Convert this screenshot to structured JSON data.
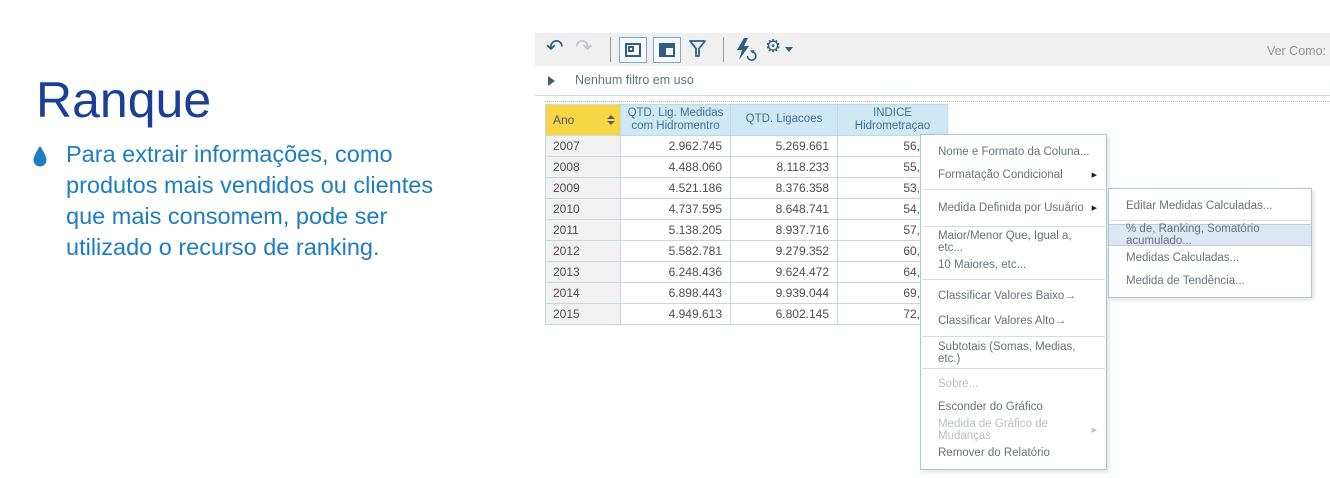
{
  "slide": {
    "title": "Ranque",
    "bullet_lines": [
      "Para extrair informações, como",
      "produtos mais vendidos ou clientes",
      "que mais consomem, pode ser",
      "utilizado o recurso de ranking."
    ]
  },
  "toolbar": {
    "icons": [
      "undo-arrow",
      "redo-arrow",
      "layout-panel",
      "layout-table",
      "filter-funnel",
      "refresh-bolt",
      "settings-gear"
    ],
    "undo_glyph": "↶",
    "redo_glyph": "↷",
    "gear_glyph": "⚙",
    "view_as_label": "Ver Como:"
  },
  "filter_bar": {
    "text": "Nenhum filtro em uso"
  },
  "table": {
    "columns": [
      {
        "id": "ano",
        "label": "Ano",
        "sorted": true
      },
      {
        "id": "medidas",
        "label_line1": "QTD. Lig. Medidas",
        "label_line2": "com Hidromentro"
      },
      {
        "id": "ligacoes",
        "label": "QTD. Ligacoes"
      },
      {
        "id": "indice",
        "label_line1": "INDICE",
        "label_line2": "Hidrometraçao"
      }
    ],
    "rows": [
      [
        "2007",
        "2.962.745",
        "5.269.661",
        "56,"
      ],
      [
        "2008",
        "4.488.060",
        "8.118.233",
        "55,"
      ],
      [
        "2009",
        "4.521.186",
        "8.376.358",
        "53,"
      ],
      [
        "2010",
        "4.737.595",
        "8.648.741",
        "54,"
      ],
      [
        "2011",
        "5.138.205",
        "8.937.716",
        "57,"
      ],
      [
        "2012",
        "5.582.781",
        "9.279.352",
        "60,"
      ],
      [
        "2013",
        "6.248.436",
        "9.624.472",
        "64,"
      ],
      [
        "2014",
        "6.898.443",
        "9.939.044",
        "69,"
      ],
      [
        "2015",
        "4.949.613",
        "6.802.145",
        "72,"
      ]
    ]
  },
  "context_menu": {
    "items": [
      {
        "label": "Nome e Formato da Coluna...",
        "type": "item"
      },
      {
        "label": "Formatação Condicional",
        "type": "item",
        "submenu_arrow": true
      },
      {
        "type": "separator"
      },
      {
        "label": "Medida Definida por Usuário",
        "type": "item",
        "submenu_arrow": true,
        "spaced": true
      },
      {
        "type": "separator"
      },
      {
        "label": "Maior/Menor Que, Igual a, etc...",
        "type": "item"
      },
      {
        "label": "10 Maiores, etc...",
        "type": "item"
      },
      {
        "type": "separator"
      },
      {
        "label": "Classificar Valores Baixo→",
        "type": "item",
        "tall": true
      },
      {
        "label": "Classificar Valores Alto→",
        "type": "item",
        "tall": true
      },
      {
        "type": "separator"
      },
      {
        "label": "Subtotais (Somas, Medias, etc.)",
        "type": "item",
        "tall": true
      },
      {
        "type": "separator"
      },
      {
        "label": "Sobre...",
        "type": "item",
        "disabled": true
      },
      {
        "label": "Esconder do Gráfico",
        "type": "item"
      },
      {
        "label": "Medida de Gráfico de Mudanças",
        "type": "item",
        "disabled": true,
        "submenu_arrow": true
      },
      {
        "label": "Remover do Relatório",
        "type": "item"
      }
    ]
  },
  "submenu": {
    "items": [
      {
        "label": "Editar Medidas Calculadas...",
        "type": "item"
      },
      {
        "type": "separator"
      },
      {
        "label": "% de, Ranking, Somatório acumulado...",
        "type": "item",
        "highlighted": true
      },
      {
        "label": "Medidas Calculadas...",
        "type": "item"
      },
      {
        "label": "Medida de Tendência...",
        "type": "item"
      }
    ]
  },
  "colors": {
    "title_blue": "#1a3f97",
    "body_blue": "#1e7cc2",
    "icon_dark": "#2e5f80",
    "toolbar_bg": "#f0f0f0",
    "header_yellow": "#f7d544",
    "header_blue": "#cfe8f6",
    "header_text": "#41708e",
    "menu_highlight": "#dbe8f2",
    "menu_border": "#a9c6da"
  }
}
